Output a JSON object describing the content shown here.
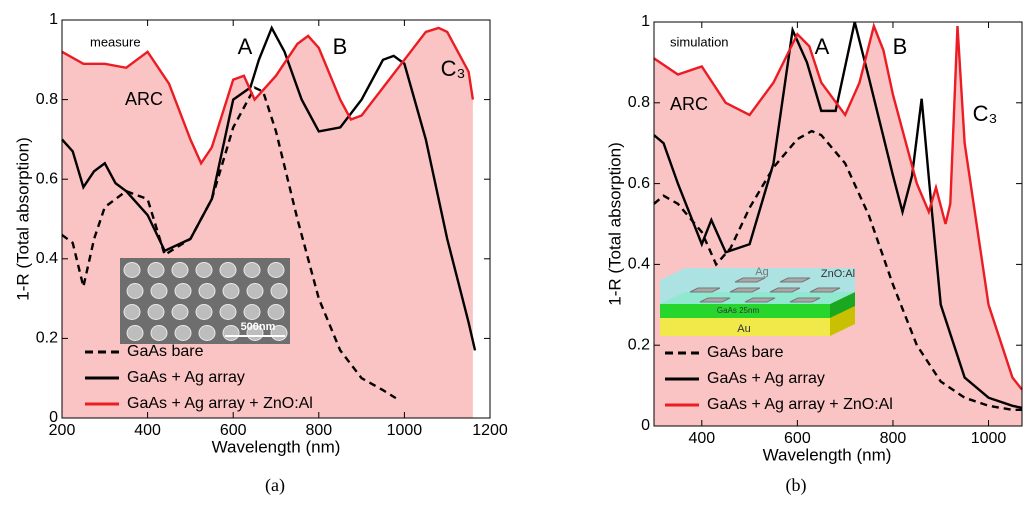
{
  "chart_data": [
    {
      "type": "line",
      "annotations": [
        "measure",
        "ARC",
        "A",
        "B",
        "C₃"
      ],
      "xlabel": "Wavelength (nm)",
      "ylabel": "1-R (Total absorption)",
      "caption": "(a)",
      "xlim": [
        200,
        1200
      ],
      "xticks": [
        200,
        400,
        600,
        800,
        1000,
        1200
      ],
      "ylim": [
        0,
        1
      ],
      "yticks": [
        0,
        0.2,
        0.4,
        0.6,
        0.8,
        1
      ],
      "inset_labels": [
        "500nm"
      ],
      "series": [
        {
          "name": "GaAs + Ag array + ZnO:Al",
          "color": "#ec1c24",
          "fill": "#fbc4c4",
          "dash": false,
          "x": [
            200,
            250,
            300,
            350,
            400,
            450,
            500,
            525,
            550,
            600,
            625,
            650,
            700,
            750,
            775,
            800,
            850,
            875,
            900,
            950,
            1000,
            1050,
            1080,
            1100,
            1150,
            1160
          ],
          "values": [
            0.92,
            0.89,
            0.89,
            0.88,
            0.92,
            0.84,
            0.7,
            0.64,
            0.68,
            0.85,
            0.86,
            0.8,
            0.86,
            0.94,
            0.96,
            0.93,
            0.8,
            0.75,
            0.76,
            0.83,
            0.9,
            0.97,
            0.98,
            0.97,
            0.87,
            0.8
          ]
        },
        {
          "name": "GaAs + Ag array",
          "color": "#000000",
          "dash": false,
          "x": [
            200,
            225,
            250,
            275,
            300,
            325,
            350,
            400,
            440,
            500,
            550,
            600,
            640,
            660,
            690,
            720,
            760,
            800,
            850,
            900,
            950,
            975,
            1000,
            1050,
            1100,
            1150,
            1165
          ],
          "values": [
            0.7,
            0.67,
            0.58,
            0.62,
            0.64,
            0.59,
            0.57,
            0.51,
            0.42,
            0.45,
            0.55,
            0.8,
            0.83,
            0.9,
            0.98,
            0.92,
            0.8,
            0.72,
            0.73,
            0.8,
            0.9,
            0.91,
            0.89,
            0.7,
            0.45,
            0.24,
            0.17
          ]
        },
        {
          "name": "GaAs bare",
          "color": "#000000",
          "dash": true,
          "x": [
            200,
            225,
            250,
            275,
            300,
            350,
            400,
            440,
            500,
            550,
            600,
            650,
            670,
            700,
            750,
            800,
            850,
            900,
            950,
            980
          ],
          "values": [
            0.46,
            0.44,
            0.33,
            0.45,
            0.53,
            0.57,
            0.55,
            0.41,
            0.45,
            0.55,
            0.73,
            0.83,
            0.82,
            0.72,
            0.5,
            0.3,
            0.17,
            0.1,
            0.07,
            0.05
          ]
        }
      ]
    },
    {
      "type": "line",
      "annotations": [
        "simulation",
        "ARC",
        "A",
        "B",
        "C₃"
      ],
      "xlabel": "Wavelength (nm)",
      "ylabel": "1-R (Total absorption)",
      "caption": "(b)",
      "xlim": [
        300,
        1070
      ],
      "xticks": [
        400,
        600,
        800,
        1000
      ],
      "ylim": [
        0,
        1
      ],
      "yticks": [
        0,
        0.2,
        0.4,
        0.6,
        0.8,
        1
      ],
      "inset_labels": [
        "Ag",
        "ZnO:Al",
        "GaAs 25nm",
        "Au"
      ],
      "series": [
        {
          "name": "GaAs + Ag array + ZnO:Al",
          "color": "#ec1c24",
          "fill": "#fbc4c4",
          "dash": false,
          "x": [
            300,
            350,
            400,
            450,
            500,
            550,
            600,
            625,
            650,
            700,
            730,
            760,
            780,
            800,
            850,
            875,
            890,
            910,
            920,
            935,
            950,
            1000,
            1050,
            1070
          ],
          "values": [
            0.91,
            0.87,
            0.89,
            0.8,
            0.77,
            0.85,
            0.97,
            0.94,
            0.85,
            0.77,
            0.85,
            0.99,
            0.93,
            0.82,
            0.6,
            0.53,
            0.59,
            0.5,
            0.55,
            0.99,
            0.7,
            0.3,
            0.12,
            0.09
          ]
        },
        {
          "name": "GaAs + Ag array",
          "color": "#000000",
          "dash": false,
          "x": [
            300,
            320,
            350,
            400,
            420,
            450,
            500,
            550,
            590,
            620,
            650,
            680,
            720,
            750,
            800,
            820,
            840,
            860,
            880,
            900,
            950,
            1000,
            1050,
            1070
          ],
          "values": [
            0.72,
            0.7,
            0.6,
            0.45,
            0.51,
            0.43,
            0.45,
            0.65,
            0.98,
            0.9,
            0.78,
            0.78,
            1,
            0.86,
            0.62,
            0.53,
            0.62,
            0.81,
            0.55,
            0.3,
            0.12,
            0.07,
            0.05,
            0.045
          ]
        },
        {
          "name": "GaAs bare",
          "color": "#000000",
          "dash": true,
          "x": [
            300,
            320,
            350,
            400,
            430,
            460,
            500,
            550,
            600,
            630,
            650,
            700,
            750,
            800,
            850,
            900,
            950,
            1000,
            1050,
            1070
          ],
          "values": [
            0.55,
            0.57,
            0.55,
            0.48,
            0.4,
            0.44,
            0.54,
            0.64,
            0.71,
            0.73,
            0.72,
            0.65,
            0.52,
            0.35,
            0.2,
            0.11,
            0.07,
            0.05,
            0.04,
            0.04
          ]
        }
      ]
    }
  ]
}
